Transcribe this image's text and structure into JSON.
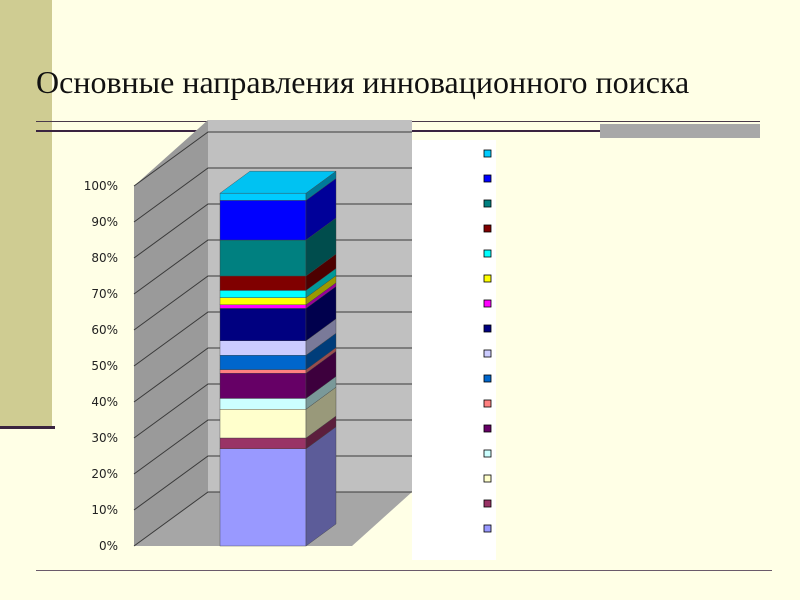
{
  "slide": {
    "title": "Основные направления инновационного поиска"
  },
  "chart_data": {
    "type": "bar",
    "stacked": true,
    "style": "3d",
    "ylim": [
      0,
      100
    ],
    "y_tick_labels": [
      "0%",
      "10%",
      "20%",
      "30%",
      "40%",
      "50%",
      "60%",
      "70%",
      "80%",
      "90%",
      "100%"
    ],
    "grid": true,
    "legend_position": "right",
    "segments": [
      {
        "value": 27,
        "color": "#9999FF"
      },
      {
        "value": 3,
        "color": "#993366"
      },
      {
        "value": 8,
        "color": "#FFFFCC"
      },
      {
        "value": 3,
        "color": "#CCFFFF"
      },
      {
        "value": 7,
        "color": "#660066"
      },
      {
        "value": 1,
        "color": "#FF8080"
      },
      {
        "value": 4,
        "color": "#0066CC"
      },
      {
        "value": 4,
        "color": "#CCCCFF"
      },
      {
        "value": 9,
        "color": "#000080"
      },
      {
        "value": 1,
        "color": "#FF00FF"
      },
      {
        "value": 2,
        "color": "#FFFF00"
      },
      {
        "value": 2,
        "color": "#00FFFF"
      },
      {
        "value": 4,
        "color": "#800000"
      },
      {
        "value": 10,
        "color": "#008080"
      },
      {
        "value": 11,
        "color": "#0000FF"
      },
      {
        "value": 2,
        "color": "#00CCFF"
      }
    ]
  }
}
